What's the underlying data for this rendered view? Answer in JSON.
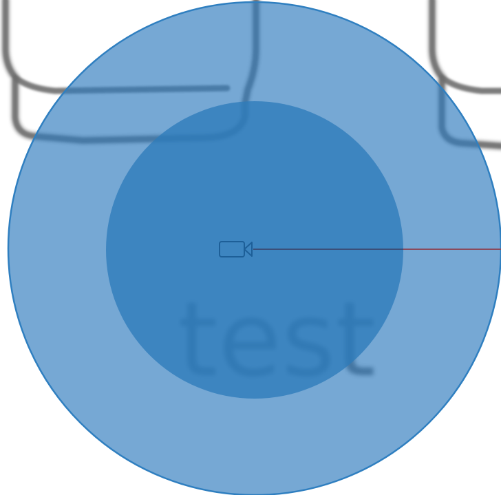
{
  "scene": {
    "background_label": "test",
    "colors": {
      "outer_range": "#2f7bbd",
      "inner_range": "#2e7bbb",
      "range_outline": "#2f7fc0",
      "camera_icon": "#1d5f98",
      "direction_line_inside": "#3b4f7a",
      "direction_line_outside": "#8a4a5c",
      "background_outline": "#6e6e6e"
    },
    "icons": {
      "camera": "video-camera-icon"
    }
  }
}
